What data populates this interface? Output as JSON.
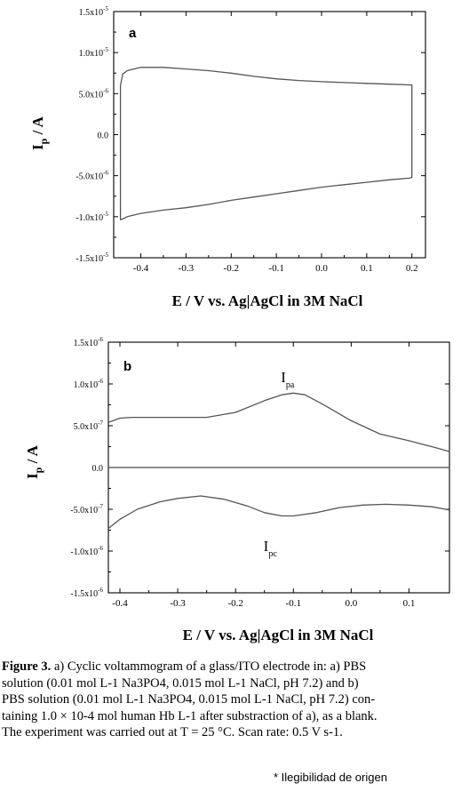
{
  "chart_data": [
    {
      "type": "line",
      "panel_label": "a",
      "xlabel": "E / V vs. Ag|AgCl in 3M NaCl",
      "ylabel": "I",
      "ylabel_sub": "p",
      "ylabel_unit": " / A",
      "xlim": [
        -0.46,
        0.23
      ],
      "ylim": [
        -1.5e-05,
        1.5e-05
      ],
      "xticks": [
        -0.4,
        -0.3,
        -0.2,
        -0.1,
        0.0,
        0.1,
        0.2
      ],
      "xtick_labels": [
        "-0.4",
        "-0.3",
        "-0.2",
        "-0.1",
        "0.0",
        "0.1",
        "0.2"
      ],
      "yticks": [
        -1.5e-05,
        -1e-05,
        -5e-06,
        0,
        5e-06,
        1e-05,
        1.5e-05
      ],
      "ytick_labels": [
        {
          "m": "-1.5x10",
          "e": "-5"
        },
        {
          "m": "-1.0x10",
          "e": "-5"
        },
        {
          "m": "-5.0x10",
          "e": "-6"
        },
        {
          "m": "0.0",
          "e": ""
        },
        {
          "m": "5.0x10",
          "e": "-6"
        },
        {
          "m": "1.0x10",
          "e": "-5"
        },
        {
          "m": "1.5x10",
          "e": "-5"
        }
      ],
      "grid": false,
      "series": [
        {
          "x": [
            -0.445,
            -0.445,
            -0.44,
            -0.43,
            -0.4,
            -0.35,
            -0.3,
            -0.25,
            -0.2,
            -0.15,
            -0.1,
            -0.05,
            0.0,
            0.05,
            0.1,
            0.15,
            0.2,
            0.2,
            0.195,
            0.15,
            0.1,
            0.05,
            0.0,
            -0.05,
            -0.1,
            -0.15,
            -0.2,
            -0.25,
            -0.3,
            -0.35,
            -0.4,
            -0.43,
            -0.445
          ],
          "y": [
            -1.04e-05,
            6e-06,
            7.4e-06,
            7.8e-06,
            8.2e-06,
            8.2e-06,
            8e-06,
            7.8e-06,
            7.5e-06,
            7.1e-06,
            6.8e-06,
            6.6e-06,
            6.45e-06,
            6.35e-06,
            6.25e-06,
            6.15e-06,
            6.05e-06,
            -5.2e-06,
            -5.3e-06,
            -5.5e-06,
            -5.8e-06,
            -6.1e-06,
            -6.4e-06,
            -6.8e-06,
            -7.2e-06,
            -7.6e-06,
            -8e-06,
            -8.5e-06,
            -8.9e-06,
            -9.2e-06,
            -9.6e-06,
            -1e-05,
            -1.04e-05
          ]
        }
      ]
    },
    {
      "type": "line",
      "panel_label": "b",
      "xlabel": "E / V vs. Ag|AgCl in 3M NaCl",
      "ylabel": "I",
      "ylabel_sub": "p",
      "ylabel_unit": " / A",
      "xlim": [
        -0.42,
        0.17
      ],
      "ylim": [
        -1.5e-06,
        1.5e-06
      ],
      "xticks": [
        -0.4,
        -0.3,
        -0.2,
        -0.1,
        0.0,
        0.1
      ],
      "xtick_labels": [
        "-0.4",
        "-0.3",
        "-0.2",
        "-0.1",
        "0.0",
        "0.1"
      ],
      "yticks": [
        -1.5e-06,
        -1e-06,
        -5e-07,
        0,
        5e-07,
        1e-06,
        1.5e-06
      ],
      "ytick_labels": [
        {
          "m": "-1.5x10",
          "e": "-6"
        },
        {
          "m": "-1.0x10",
          "e": "-6"
        },
        {
          "m": "-5.0x10",
          "e": "-7"
        },
        {
          "m": "0.0",
          "e": ""
        },
        {
          "m": "5.0x10",
          "e": "-7"
        },
        {
          "m": "1.0x10",
          "e": "-6"
        },
        {
          "m": "1.5x10",
          "e": "-6"
        }
      ],
      "grid": false,
      "annotations": [
        {
          "text": "I",
          "sub": "pa",
          "x": -0.11,
          "y": 1.02e-06
        },
        {
          "text": "I",
          "sub": "pc",
          "x": -0.14,
          "y": -1e-06
        }
      ],
      "series": [
        {
          "x": [
            -0.42,
            -0.4,
            -0.38,
            -0.35,
            -0.3,
            -0.25,
            -0.2,
            -0.15,
            -0.12,
            -0.1,
            -0.08,
            -0.05,
            0.0,
            0.05,
            0.1,
            0.15,
            0.17
          ],
          "y": [
            5.4e-07,
            5.9e-07,
            6e-07,
            6e-07,
            6e-07,
            6e-07,
            6.6e-07,
            8e-07,
            8.7e-07,
            8.9e-07,
            8.7e-07,
            7.6e-07,
            5.6e-07,
            4e-07,
            3.2e-07,
            2.3e-07,
            1.9e-07
          ]
        },
        {
          "x": [
            -0.42,
            -0.4,
            -0.37,
            -0.33,
            -0.3,
            -0.26,
            -0.22,
            -0.18,
            -0.15,
            -0.12,
            -0.1,
            -0.06,
            -0.02,
            0.02,
            0.06,
            0.1,
            0.14,
            0.17
          ],
          "y": [
            -7.3e-07,
            -6.2e-07,
            -5e-07,
            -4.1e-07,
            -3.7e-07,
            -3.4e-07,
            -3.8e-07,
            -4.6e-07,
            -5.4e-07,
            -5.8e-07,
            -5.8e-07,
            -5.4e-07,
            -4.8e-07,
            -4.5e-07,
            -4.4e-07,
            -4.5e-07,
            -4.7e-07,
            -5.1e-07
          ]
        },
        {
          "x": [
            -0.42,
            0.17
          ],
          "y": [
            0,
            0
          ]
        }
      ]
    }
  ],
  "caption": {
    "lead": "Figure 3.",
    "lines": [
      " a) Cyclic voltammogram of a glass/ITO electrode in: a) PBS",
      "solution (0.01 mol L-1 Na3PO4, 0.015 mol L-1 NaCl, pH 7.2) and b)",
      "PBS solution (0.01 mol L-1 Na3PO4, 0.015 mol L-1 NaCl, pH 7.2) con-",
      "taining 1.0 × 10-4 mol human Hb L-1 after substraction of a), as a blank.",
      "The experiment was carried out at T = 25 °C. Scan rate: 0.5 V s-1."
    ]
  },
  "note": "* Ilegibilidad de origen"
}
